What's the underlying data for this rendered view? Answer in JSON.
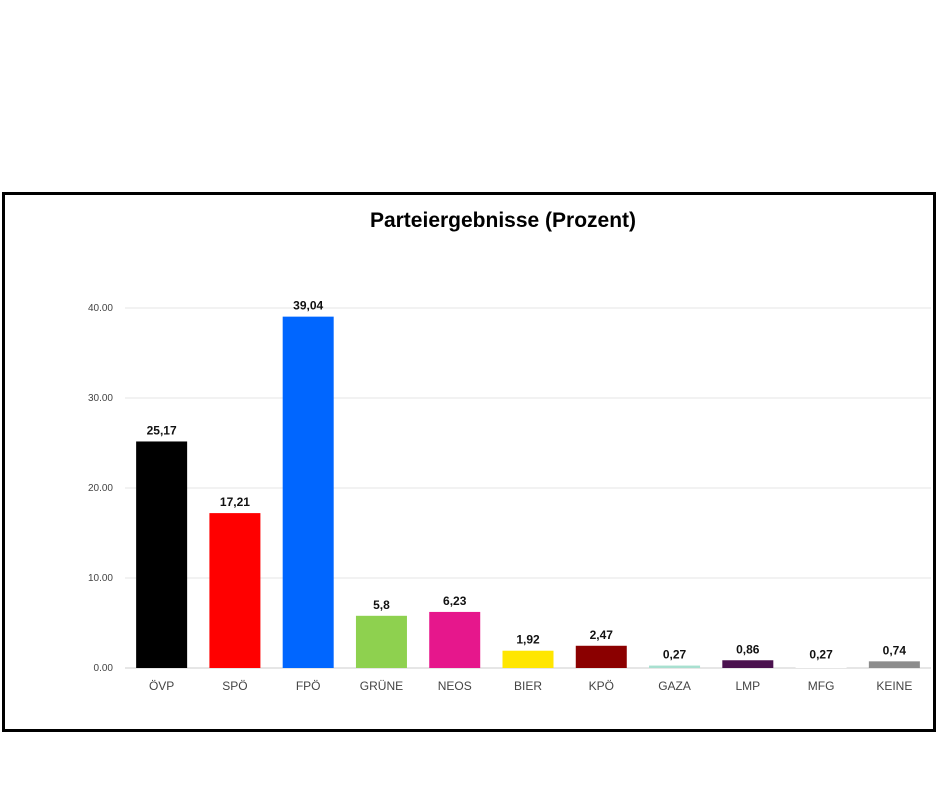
{
  "chart_data": {
    "type": "bar",
    "title": "Parteiergebnisse (Prozent)",
    "xlabel": "",
    "ylabel": "",
    "ylim": [
      0,
      40
    ],
    "yticks": [
      "0.00",
      "10.00",
      "20.00",
      "30.00",
      "40.00"
    ],
    "ytick_values": [
      0,
      10,
      20,
      30,
      40
    ],
    "grid": true,
    "categories": [
      "ÖVP",
      "SPÖ",
      "FPÖ",
      "GRÜNE",
      "NEOS",
      "BIER",
      "KPÖ",
      "GAZA",
      "LMP",
      "MFG",
      "KEINE"
    ],
    "values": [
      25.17,
      17.21,
      39.04,
      5.8,
      6.23,
      1.92,
      2.47,
      0.27,
      0.86,
      0.27,
      0.74
    ],
    "value_labels": [
      "25,17",
      "17,21",
      "39,04",
      "5,8",
      "6,23",
      "1,92",
      "2,47",
      "0,27",
      "0,86",
      "0,27",
      "0,74"
    ],
    "colors": [
      "#000000",
      "#ff0000",
      "#0066ff",
      "#8ed14f",
      "#e6178c",
      "#ffe600",
      "#8b0000",
      "#a8e0d0",
      "#4b124f",
      "#ffffff",
      "#8c8c8c"
    ]
  }
}
